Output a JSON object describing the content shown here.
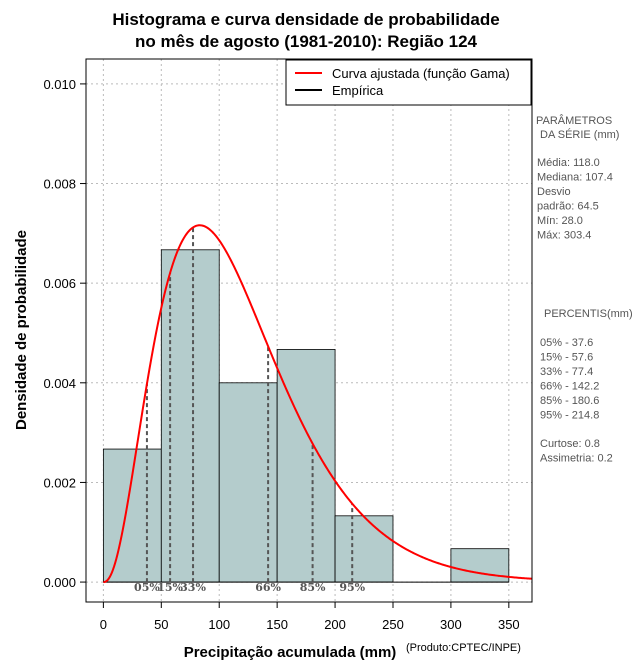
{
  "chart_data": {
    "type": "histogram",
    "title_line1": "Histograma e curva densidade de probabilidade",
    "title_line2": "no mês de agosto (1981-2010): Região 124",
    "xlabel": "Precipitação acumulada (mm)",
    "ylabel": "Densidade de probabilidade",
    "credit": "(Produto:CPTEC/INPE)",
    "xlim": [
      -15,
      370
    ],
    "ylim": [
      -0.0004,
      0.0105
    ],
    "x_ticks": [
      0,
      50,
      100,
      150,
      200,
      250,
      300,
      350
    ],
    "x_tick_labels": [
      "0",
      "50",
      "100",
      "150",
      "200",
      "250",
      "300",
      "350"
    ],
    "y_ticks": [
      0,
      0.002,
      0.004,
      0.006,
      0.008,
      0.01
    ],
    "y_tick_labels": [
      "0.000",
      "0.002",
      "0.004",
      "0.006",
      "0.008",
      "0.010"
    ],
    "bins": [
      {
        "x0": 0,
        "x1": 50,
        "density": 0.00267
      },
      {
        "x0": 50,
        "x1": 100,
        "density": 0.00667
      },
      {
        "x0": 100,
        "x1": 150,
        "density": 0.004
      },
      {
        "x0": 150,
        "x1": 200,
        "density": 0.00467
      },
      {
        "x0": 200,
        "x1": 250,
        "density": 0.00133
      },
      {
        "x0": 250,
        "x1": 300,
        "density": 0
      },
      {
        "x0": 300,
        "x1": 350,
        "density": 0.00067
      }
    ],
    "gamma_fit": {
      "shape": 3.39,
      "scale": 34.8,
      "x_from": 0,
      "x_to": 370
    },
    "percentiles": [
      {
        "label": "05%",
        "value": 37.6
      },
      {
        "label": "15%",
        "value": 57.6
      },
      {
        "label": "33%",
        "value": 77.4
      },
      {
        "label": "66%",
        "value": 142.2
      },
      {
        "label": "85%",
        "value": 180.6
      },
      {
        "label": "95%",
        "value": 214.8
      }
    ],
    "legend": {
      "position": "top-right",
      "entries": [
        {
          "label": "Curva ajustada (função Gama)",
          "color": "#ff0000"
        },
        {
          "label": "Empírica",
          "color": "#000000"
        }
      ]
    },
    "colors": {
      "bar_fill": "#b4cccc",
      "curve": "#ff0000",
      "grid": "#bbbbbb",
      "percentile_line": "#555555"
    }
  },
  "side_panel": {
    "params_header_1": "PARÂMETROS",
    "params_header_2": "DA SÉRIE (mm)",
    "params_lines": [
      "Média:  118.0",
      "Mediana:  107.4",
      "Desvio",
      "padrão:  64.5",
      "Mín:  28.0",
      "Máx:  303.4"
    ],
    "percentis_header": "PERCENTIS(mm)",
    "percentis_lines": [
      "05% -  37.6",
      "15% -  57.6",
      "33% -  77.4",
      "66% -  142.2",
      "85% -  180.6",
      "95% -  214.8"
    ],
    "stats_lines": [
      "Curtose:  0.8",
      "Assimetria:  0.2"
    ]
  }
}
